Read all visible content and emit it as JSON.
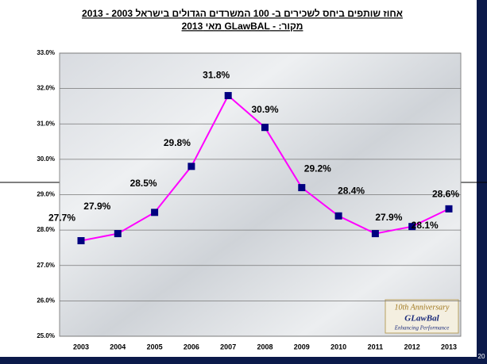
{
  "chart_data": {
    "type": "line",
    "title": "אחוז שותפים ביחס לשכירים ב- 100 המשרדים הגדולים בישראל 2003 - 2013",
    "subtitle": "מקור:  - GLawBAL מאי 2013",
    "categories": [
      "2003",
      "2004",
      "2005",
      "2006",
      "2007",
      "2008",
      "2009",
      "2010",
      "2011",
      "2012",
      "2013"
    ],
    "series": [
      {
        "name": "אחוז שותפים",
        "color": "#ff00ff",
        "marker_color": "#000080",
        "values": [
          27.7,
          27.9,
          28.5,
          29.8,
          31.8,
          30.9,
          29.2,
          28.4,
          27.9,
          28.1,
          28.6
        ],
        "value_labels": [
          "27.7%",
          "27.9%",
          "28.5%",
          "29.8%",
          "31.8%",
          "30.9%",
          "29.2%",
          "28.4%",
          "27.9%",
          "28.1%",
          "28.6%"
        ]
      }
    ],
    "ylim": [
      25,
      33
    ],
    "yticks": [
      {
        "value": 25,
        "label": "25.0%"
      },
      {
        "value": 26,
        "label": "26.0%"
      },
      {
        "value": 27,
        "label": "27.0%"
      },
      {
        "value": 28,
        "label": "28.0%"
      },
      {
        "value": 29,
        "label": "29.0%"
      },
      {
        "value": 30,
        "label": "30.0%"
      },
      {
        "value": 31,
        "label": "31.0%"
      },
      {
        "value": 32,
        "label": "32.0%"
      },
      {
        "value": 33,
        "label": "33.0%"
      }
    ],
    "grid": true
  },
  "logo": {
    "line1": "10th Anniversary",
    "line2": "GLawBal",
    "line3": "Enhancing Performance"
  },
  "page_number": "20"
}
